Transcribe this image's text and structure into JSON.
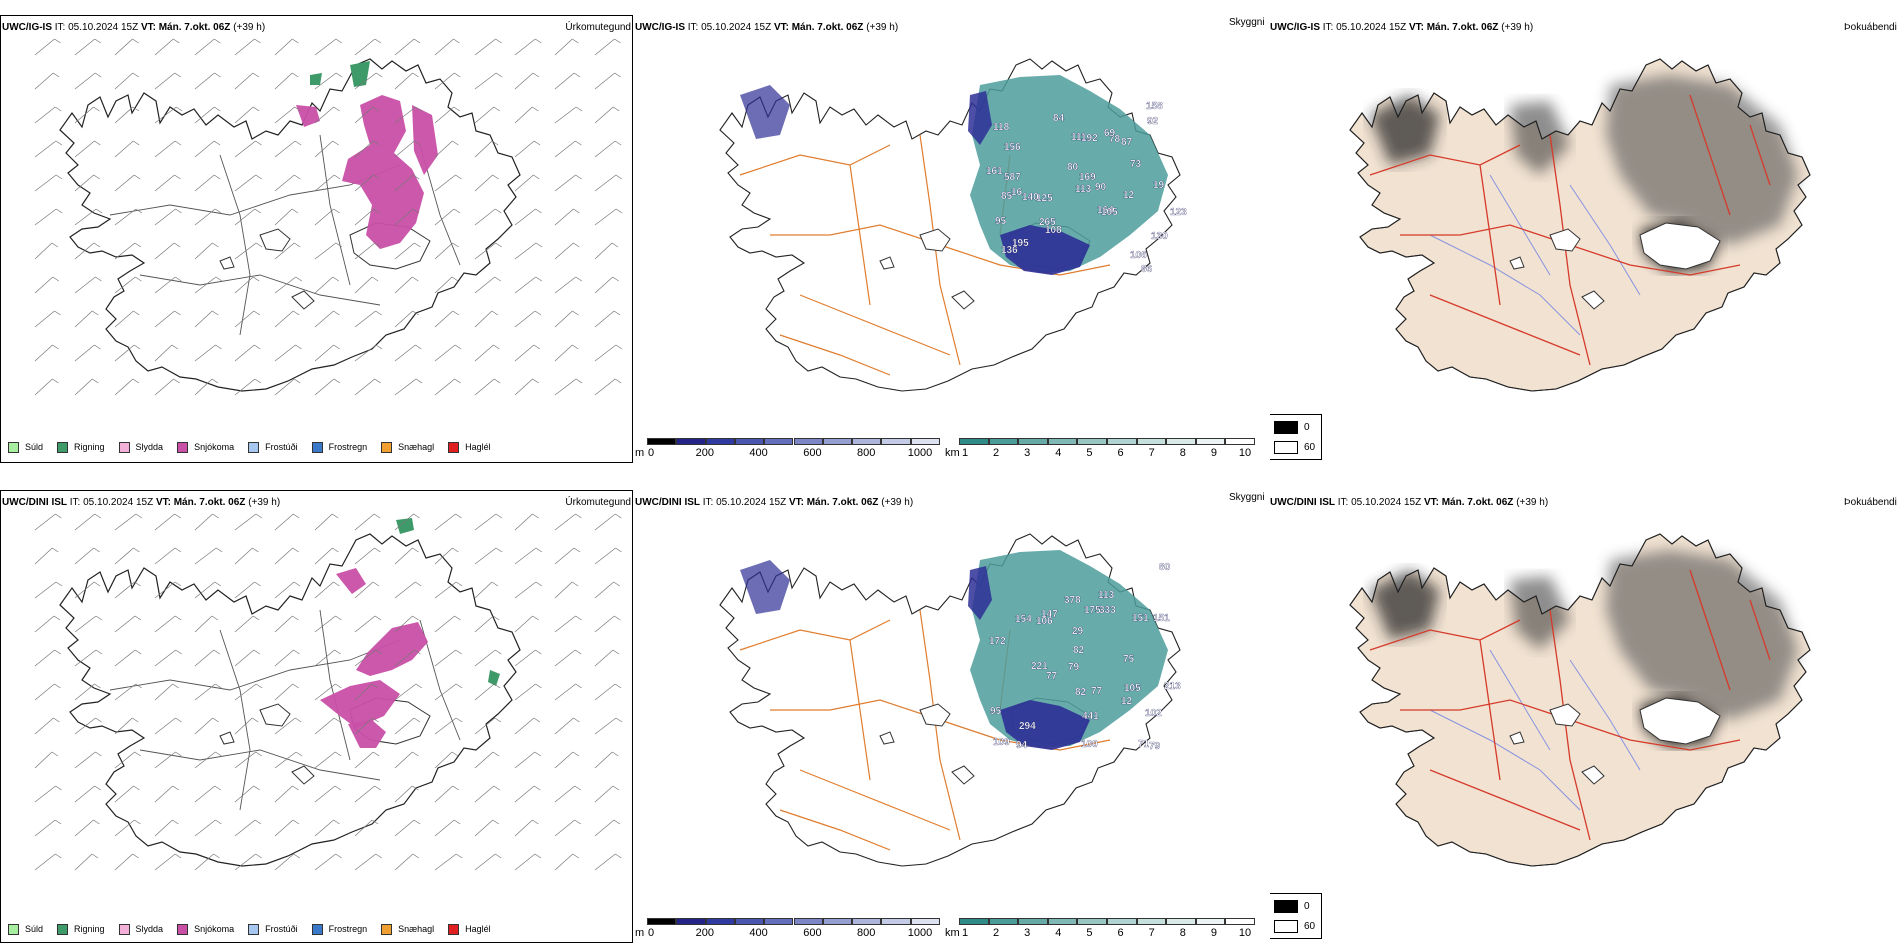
{
  "colors": {
    "snow": "#c94fa7",
    "rain": "#3e9a68",
    "cloud_deep": "#2e2f96",
    "cloud_teal": "#4c9c9b",
    "glacier_fill": "#f1e2d2",
    "road": "#e07d2e",
    "road_red": "#d63a2a",
    "river": "#8893e0"
  },
  "rows": [
    {
      "id": "ig",
      "precip": {
        "title_bold": "UWC/IG-IS",
        "title_rest": " IT: 05.10.2024 15Z ",
        "vt_bold": "VT: Mán. 7.okt. 06Z",
        "vt_rest": " (+39 h)",
        "corner": "Úrkomutegund"
      },
      "cloud": {
        "title_bold": "UWC/IG-IS",
        "title_rest": " IT: 05.10.2024 15Z ",
        "vt_bold": "VT: Mán. 7.okt. 06Z",
        "vt_rest": " (+39 h)",
        "corner": "Skyggni",
        "labels": [
          "86",
          "16",
          "164",
          "118",
          "130",
          "156",
          "195",
          "125",
          "87",
          "111",
          "78",
          "106",
          "108",
          "84",
          "90",
          "95",
          "12",
          "169",
          "161",
          "136",
          "158",
          "192",
          "73",
          "123",
          "19",
          "587",
          "140",
          "113",
          "80",
          "92",
          "105",
          "85",
          "265",
          "69"
        ]
      },
      "fog": {
        "title_bold": "UWC/IG-IS",
        "title_rest": " IT: 05.10.2024 15Z ",
        "vt_bold": "VT: Mán. 7.okt. 06Z",
        "vt_rest": " (+39 h)",
        "corner": "Þokuábendi"
      }
    },
    {
      "id": "dini",
      "precip": {
        "title_bold": "UWC/DINI ISL",
        "title_rest": " IT: 05.10.2024 15Z ",
        "vt_bold": "VT: Mán. 7.okt. 06Z",
        "vt_rest": " (+39 h)",
        "corner": "Úrkomutegund"
      },
      "cloud": {
        "title_bold": "UWC/DINI ISL",
        "title_rest": " IT: 05.10.2024 15Z ",
        "vt_bold": "VT: Mán. 7.okt. 06Z",
        "vt_rest": " (+39 h)",
        "corner": "Skyggni",
        "labels": [
          "29",
          "79",
          "105",
          "100",
          "75",
          "79",
          "77",
          "82",
          "71",
          "221",
          "378",
          "154",
          "113",
          "80",
          "102",
          "12",
          "147",
          "294",
          "213",
          "151",
          "441",
          "333",
          "172",
          "94",
          "95",
          "109",
          "82",
          "77",
          "106",
          "151",
          "175"
        ]
      },
      "fog": {
        "title_bold": "UWC/DINI ISL",
        "title_rest": " IT: 05.10.2024 15Z ",
        "vt_bold": "VT: Mán. 7.okt. 06Z",
        "vt_rest": " (+39 h)",
        "corner": "Þokuábendi"
      }
    }
  ],
  "precip_legend": [
    {
      "label": "Súld",
      "color": "#a8eea0"
    },
    {
      "label": "Rigning",
      "color": "#3e9a68"
    },
    {
      "label": "Slydda",
      "color": "#f3b1d9"
    },
    {
      "label": "Snjókoma",
      "color": "#c94fa7"
    },
    {
      "label": "Frostúði",
      "color": "#a6c8f0"
    },
    {
      "label": "Frostregn",
      "color": "#3a78c8"
    },
    {
      "label": "Snæhagl",
      "color": "#f0a030"
    },
    {
      "label": "Haglél",
      "color": "#e02020"
    }
  ],
  "cloud_bars": {
    "m": {
      "unit": "m",
      "ticks": [
        "0",
        "200",
        "400",
        "600",
        "800",
        "1000"
      ],
      "colors": [
        "#000000",
        "#23238a",
        "#2f3ba0",
        "#4a56b0",
        "#6470be",
        "#7d87c8",
        "#959fd2",
        "#adb5dc",
        "#c4cbe6",
        "#dde1f0"
      ]
    },
    "km": {
      "unit": "km",
      "ticks": [
        "1",
        "2",
        "3",
        "4",
        "5",
        "6",
        "7",
        "8",
        "9",
        "10"
      ],
      "colors": [
        "#2f8b87",
        "#4a9c98",
        "#66aaa6",
        "#7fb8b4",
        "#98c6c2",
        "#b0d4d1",
        "#c6e0dd",
        "#daeae8",
        "#ecf4f3",
        "#ffffff"
      ]
    }
  },
  "fog_legend": [
    {
      "label": "0",
      "color": "#000000"
    },
    {
      "label": "60",
      "color": "#ffffff"
    }
  ]
}
